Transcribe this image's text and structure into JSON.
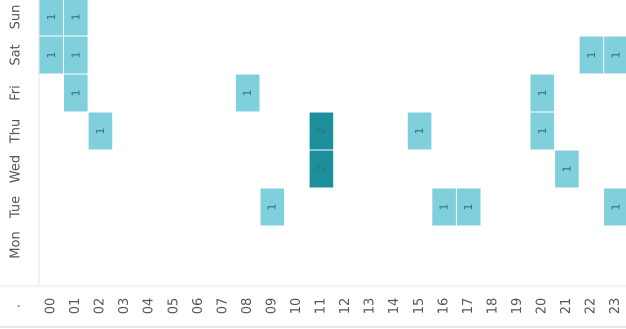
{
  "chart_data": {
    "type": "heatmap",
    "x_categories": [
      "00",
      "01",
      "02",
      "03",
      "04",
      "05",
      "06",
      "07",
      "08",
      "09",
      "10",
      "11",
      "12",
      "13",
      "14",
      "15",
      "16",
      "17",
      "18",
      "19",
      "20",
      "21",
      "22",
      "23"
    ],
    "y_categories": [
      "Sun",
      "Sat",
      "Fri",
      "Thu",
      "Wed",
      "Tue",
      "Mon"
    ],
    "corner_label": ".",
    "cells": [
      {
        "day": "Sun",
        "hour": "00",
        "value": 1
      },
      {
        "day": "Sun",
        "hour": "01",
        "value": 1
      },
      {
        "day": "Sat",
        "hour": "00",
        "value": 1
      },
      {
        "day": "Sat",
        "hour": "01",
        "value": 1
      },
      {
        "day": "Sat",
        "hour": "22",
        "value": 1
      },
      {
        "day": "Sat",
        "hour": "23",
        "value": 1
      },
      {
        "day": "Fri",
        "hour": "01",
        "value": 1
      },
      {
        "day": "Fri",
        "hour": "08",
        "value": 1
      },
      {
        "day": "Fri",
        "hour": "20",
        "value": 1
      },
      {
        "day": "Thu",
        "hour": "02",
        "value": 1
      },
      {
        "day": "Thu",
        "hour": "11",
        "value": 2
      },
      {
        "day": "Thu",
        "hour": "15",
        "value": 1
      },
      {
        "day": "Thu",
        "hour": "20",
        "value": 1
      },
      {
        "day": "Wed",
        "hour": "11",
        "value": 2
      },
      {
        "day": "Wed",
        "hour": "21",
        "value": 1
      },
      {
        "day": "Tue",
        "hour": "09",
        "value": 1
      },
      {
        "day": "Tue",
        "hour": "16",
        "value": 1
      },
      {
        "day": "Tue",
        "hour": "17",
        "value": 1
      },
      {
        "day": "Tue",
        "hour": "23",
        "value": 1
      }
    ],
    "colors": {
      "1": "#7fd0dc",
      "2": "#1c8f9c",
      "border": "#e7e7e7",
      "text": "#555555"
    }
  }
}
